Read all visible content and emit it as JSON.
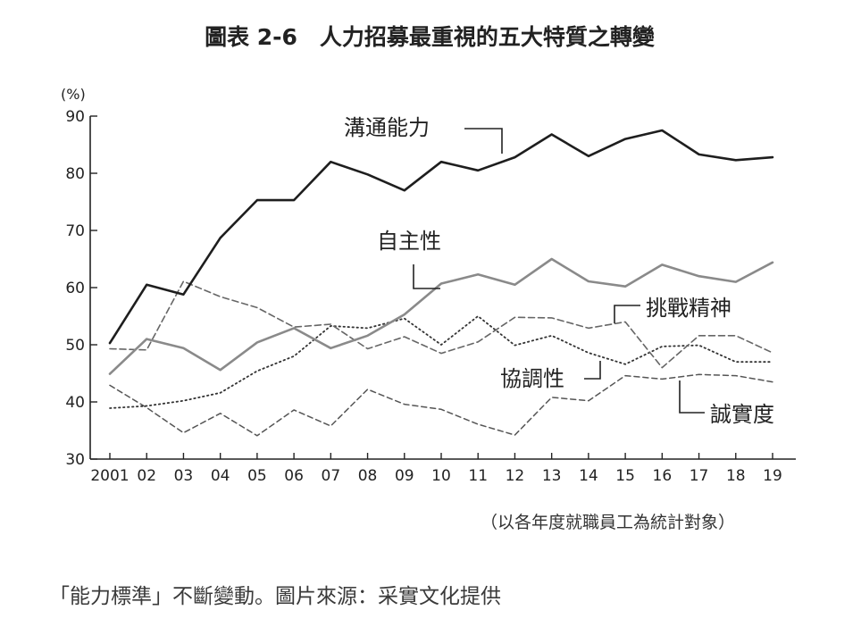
{
  "chart_data": {
    "type": "line",
    "title": "圖表 2-6　人力招募最重視的五大特質之轉變",
    "ylabel": "(%)",
    "xlabel": "",
    "ylim": [
      30,
      90
    ],
    "yticks": [
      30,
      40,
      50,
      60,
      70,
      80,
      90
    ],
    "categories": [
      "2001",
      "02",
      "03",
      "04",
      "05",
      "06",
      "07",
      "08",
      "09",
      "10",
      "11",
      "12",
      "13",
      "14",
      "15",
      "16",
      "17",
      "18",
      "19"
    ],
    "grid": false,
    "legend": "inline labels",
    "note": "（以各年度就職員工為統計對象）",
    "series": [
      {
        "name": "溝通能力",
        "style": "solid-black",
        "color": "#222222",
        "values": [
          50.3,
          60.5,
          58.8,
          68.7,
          75.3,
          75.3,
          82.0,
          79.8,
          77.0,
          82.0,
          80.5,
          82.8,
          86.8,
          83.0,
          86.0,
          87.5,
          83.3,
          82.3,
          82.8
        ]
      },
      {
        "name": "自主性",
        "style": "solid-gray",
        "color": "#888888",
        "values": [
          44.9,
          51.0,
          49.4,
          45.6,
          50.4,
          52.9,
          49.4,
          51.6,
          55.3,
          60.7,
          62.3,
          60.5,
          65.0,
          61.1,
          60.2,
          64.0,
          62.0,
          61.0,
          64.4
        ]
      },
      {
        "name": "挑戰精神",
        "style": "long-dash",
        "color": "#666666",
        "values": [
          49.3,
          49.1,
          61.1,
          58.4,
          56.5,
          53.1,
          53.6,
          49.3,
          51.4,
          48.5,
          50.5,
          54.8,
          54.7,
          52.9,
          54.0,
          46.0,
          51.6,
          51.6,
          48.6
        ]
      },
      {
        "name": "協調性",
        "style": "dotted",
        "color": "#444444",
        "values": [
          38.9,
          39.3,
          40.2,
          41.6,
          45.4,
          48.0,
          53.3,
          52.9,
          54.6,
          50.0,
          55.0,
          49.9,
          51.6,
          48.6,
          46.6,
          49.7,
          49.9,
          47.0,
          47.0
        ]
      },
      {
        "name": "誠實度",
        "style": "short-dash",
        "color": "#555555",
        "values": [
          42.9,
          39.0,
          34.6,
          38.0,
          34.1,
          38.6,
          35.8,
          42.2,
          39.6,
          38.7,
          36.1,
          34.2,
          40.8,
          40.2,
          44.6,
          44.0,
          44.8,
          44.6,
          43.5
        ]
      }
    ]
  },
  "caption": "「能力標準」不斷變動。圖片來源：采實文化提供"
}
